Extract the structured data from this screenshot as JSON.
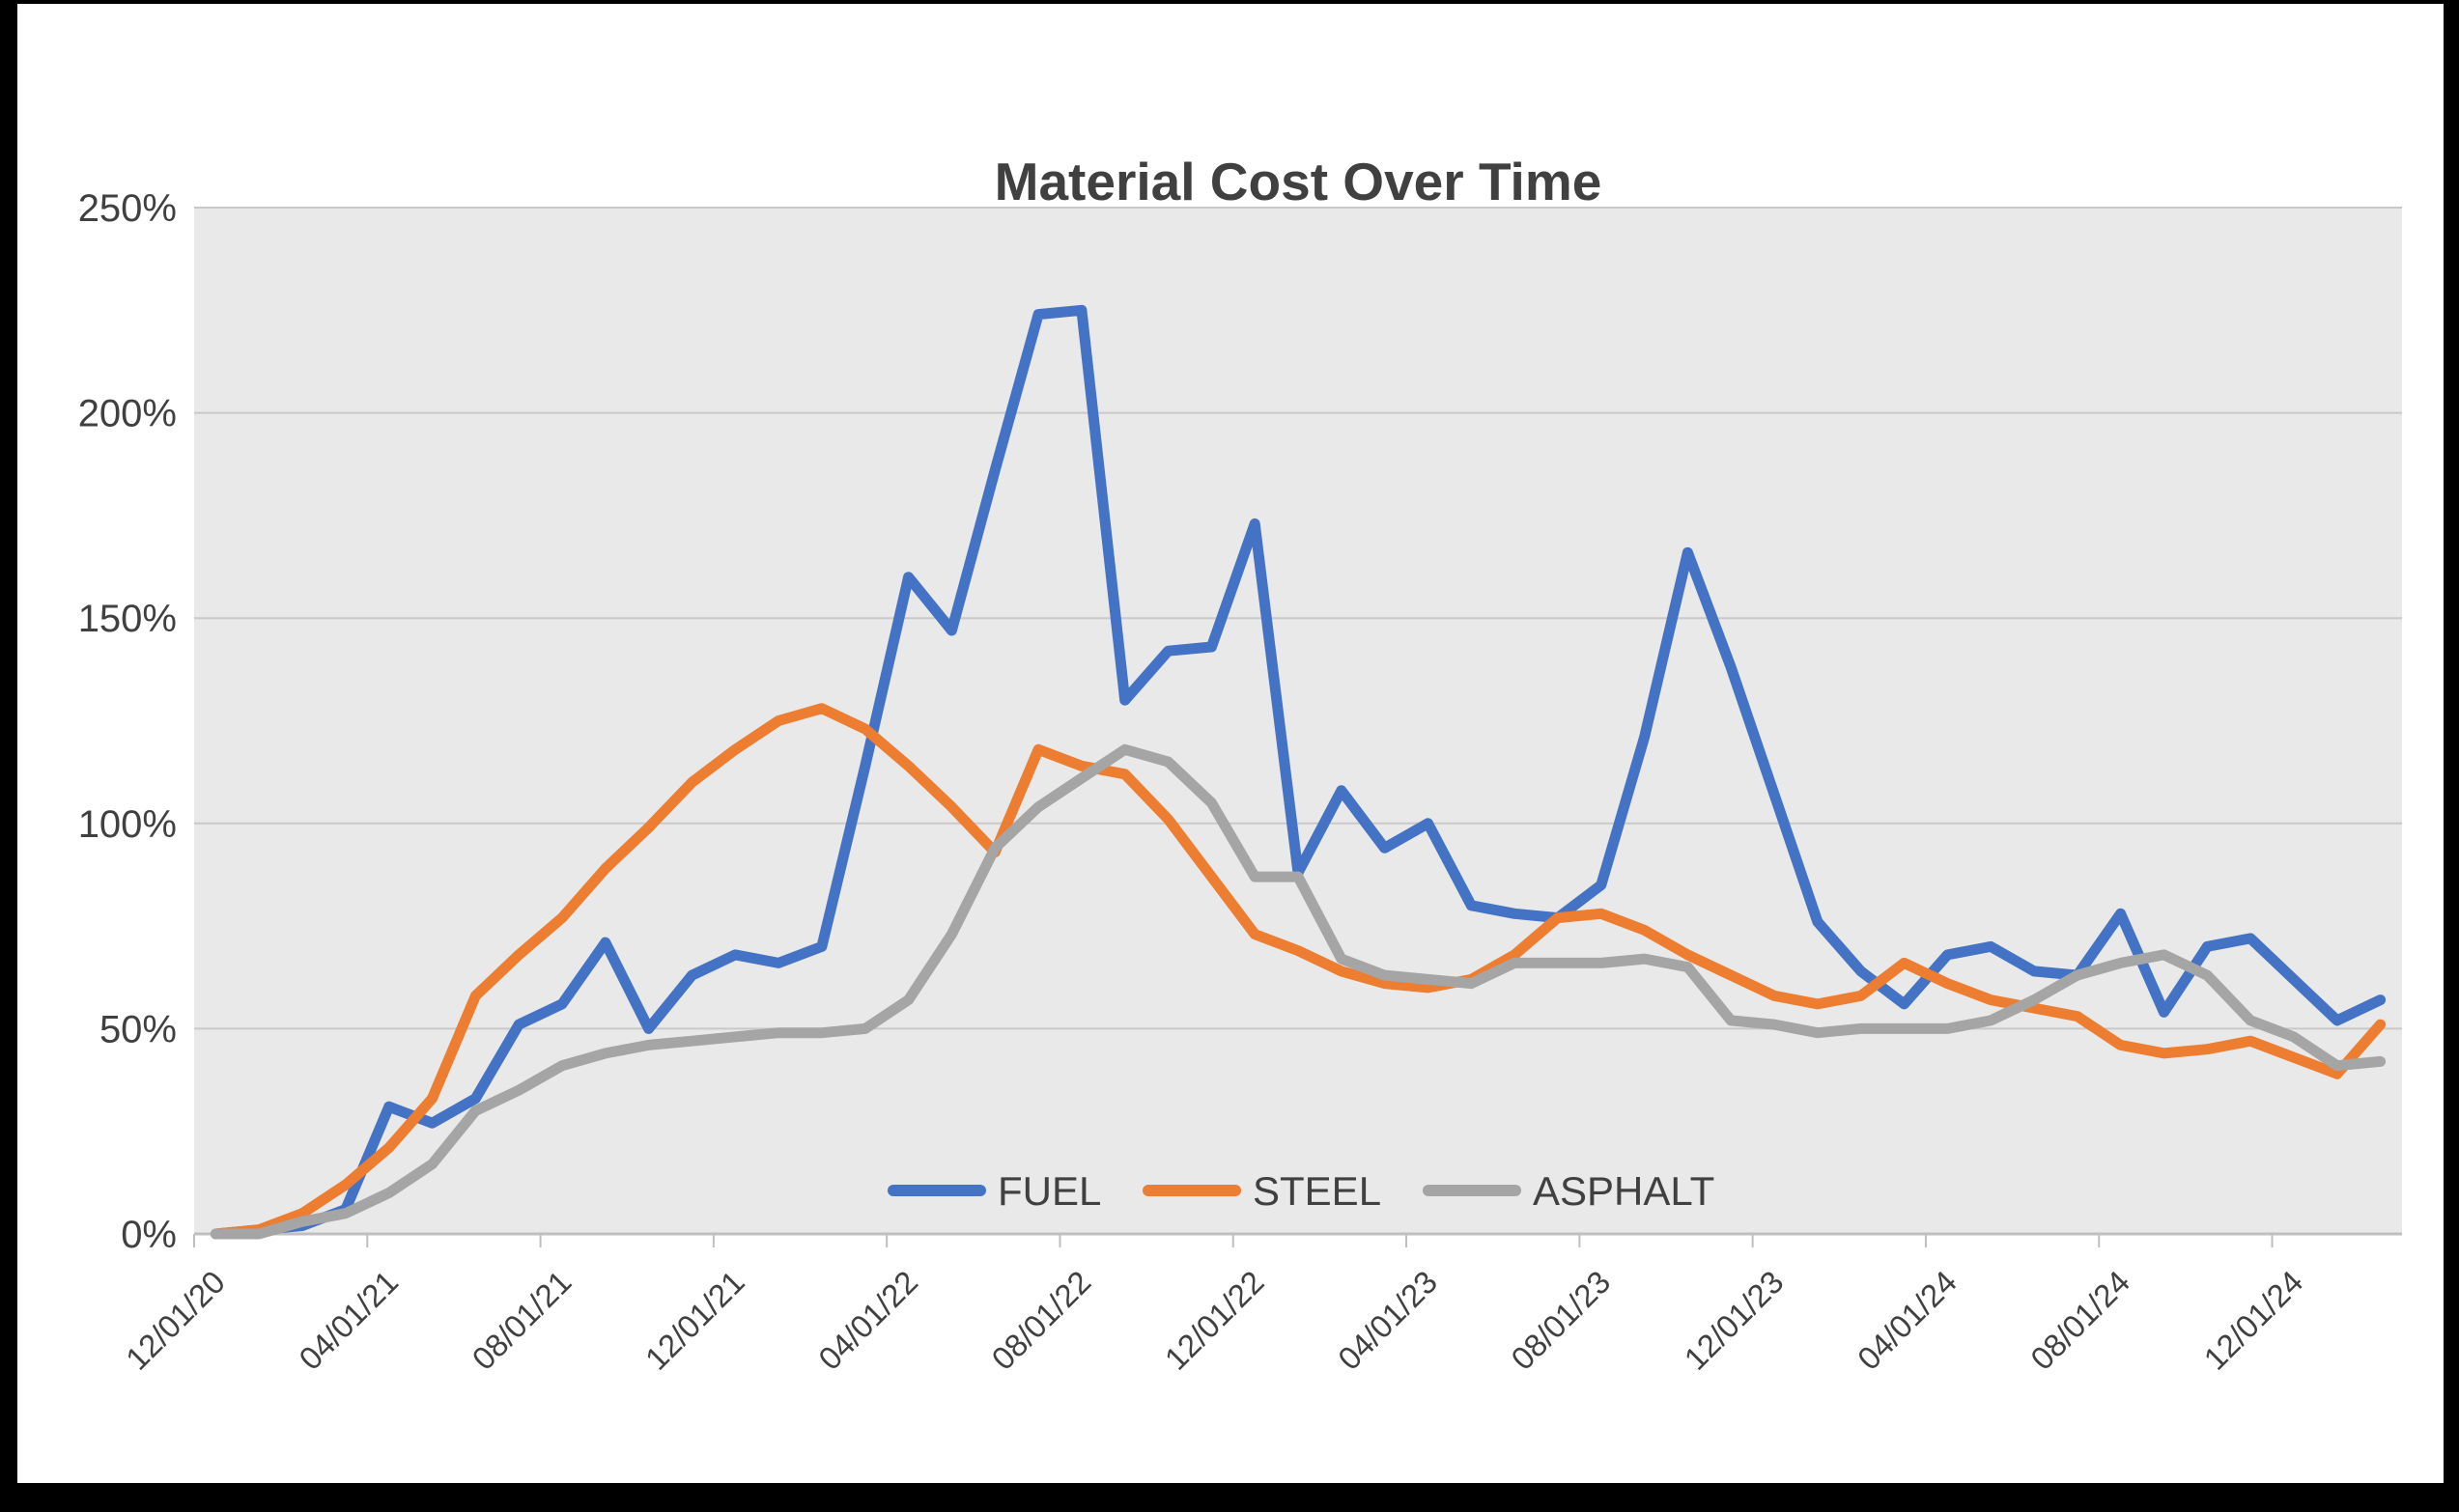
{
  "page": {
    "frame_color": "#000000",
    "card_background": "#ffffff"
  },
  "chart_data": {
    "type": "line",
    "title": "Material Cost Over Time",
    "xlabel": "",
    "ylabel": "",
    "ylim": [
      0,
      250
    ],
    "y_tick_labels": [
      "0%",
      "50%",
      "100%",
      "150%",
      "200%",
      "250%"
    ],
    "y_tick_values": [
      0,
      50,
      100,
      150,
      200,
      250
    ],
    "grid": "horizontal",
    "plot_bg": "#E9E9E9",
    "gridline_color": "#C9C9C9",
    "axis_line_color": "#BFBFBF",
    "label_color": "#404040",
    "title_color": "#404040",
    "legend_position": "bottom-center-inside",
    "x_tick_every": 4,
    "x_tick_labels": [
      "12/01/20",
      "04/01/21",
      "08/01/21",
      "12/01/21",
      "04/01/22",
      "08/01/22",
      "12/01/22",
      "04/01/23",
      "08/01/23",
      "12/01/23",
      "04/01/24",
      "08/01/24",
      "12/01/24"
    ],
    "categories": [
      "12/01/20",
      "01/01/21",
      "02/01/21",
      "03/01/21",
      "04/01/21",
      "05/01/21",
      "06/01/21",
      "07/01/21",
      "08/01/21",
      "09/01/21",
      "10/01/21",
      "11/01/21",
      "12/01/21",
      "01/01/22",
      "02/01/22",
      "03/01/22",
      "04/01/22",
      "05/01/22",
      "06/01/22",
      "07/01/22",
      "08/01/22",
      "09/01/22",
      "10/01/22",
      "11/01/22",
      "12/01/22",
      "01/01/23",
      "02/01/23",
      "03/01/23",
      "04/01/23",
      "05/01/23",
      "06/01/23",
      "07/01/23",
      "08/01/23",
      "09/01/23",
      "10/01/23",
      "11/01/23",
      "12/01/23",
      "01/01/24",
      "02/01/24",
      "03/01/24",
      "04/01/24",
      "05/01/24",
      "06/01/24",
      "07/01/24",
      "08/01/24",
      "09/01/24",
      "10/01/24",
      "11/01/24",
      "12/01/24",
      "01/01/25",
      "02/01/25"
    ],
    "series": [
      {
        "name": "FUEL",
        "color": "#4472C4",
        "values": [
          0,
          1,
          2,
          6,
          31,
          27,
          33,
          51,
          56,
          71,
          50,
          63,
          68,
          66,
          70,
          114,
          160,
          147,
          186,
          224,
          225,
          130,
          142,
          143,
          173,
          88,
          108,
          94,
          100,
          80,
          78,
          77,
          85,
          121,
          166,
          138,
          107,
          76,
          64,
          56,
          68,
          70,
          64,
          63,
          78,
          54,
          70,
          72,
          62,
          52,
          57
        ]
      },
      {
        "name": "STEEL",
        "color": "#ED7D31",
        "values": [
          0,
          1,
          5,
          12,
          21,
          33,
          58,
          68,
          77,
          89,
          99,
          110,
          118,
          125,
          128,
          123,
          114,
          104,
          93,
          118,
          114,
          112,
          101,
          87,
          73,
          69,
          64,
          61,
          60,
          62,
          68,
          77,
          78,
          74,
          68,
          63,
          58,
          56,
          58,
          66,
          61,
          57,
          55,
          53,
          46,
          44,
          45,
          47,
          43,
          39,
          51
        ]
      },
      {
        "name": "ASPHALT",
        "color": "#A5A5A5",
        "values": [
          0,
          0,
          3,
          5,
          10,
          17,
          30,
          35,
          41,
          44,
          46,
          47,
          48,
          49,
          49,
          50,
          57,
          73,
          94,
          104,
          111,
          118,
          115,
          105,
          87,
          87,
          67,
          63,
          62,
          61,
          66,
          66,
          66,
          67,
          65,
          52,
          51,
          49,
          50,
          50,
          50,
          52,
          57,
          63,
          66,
          68,
          63,
          52,
          48,
          41,
          42
        ]
      }
    ]
  }
}
